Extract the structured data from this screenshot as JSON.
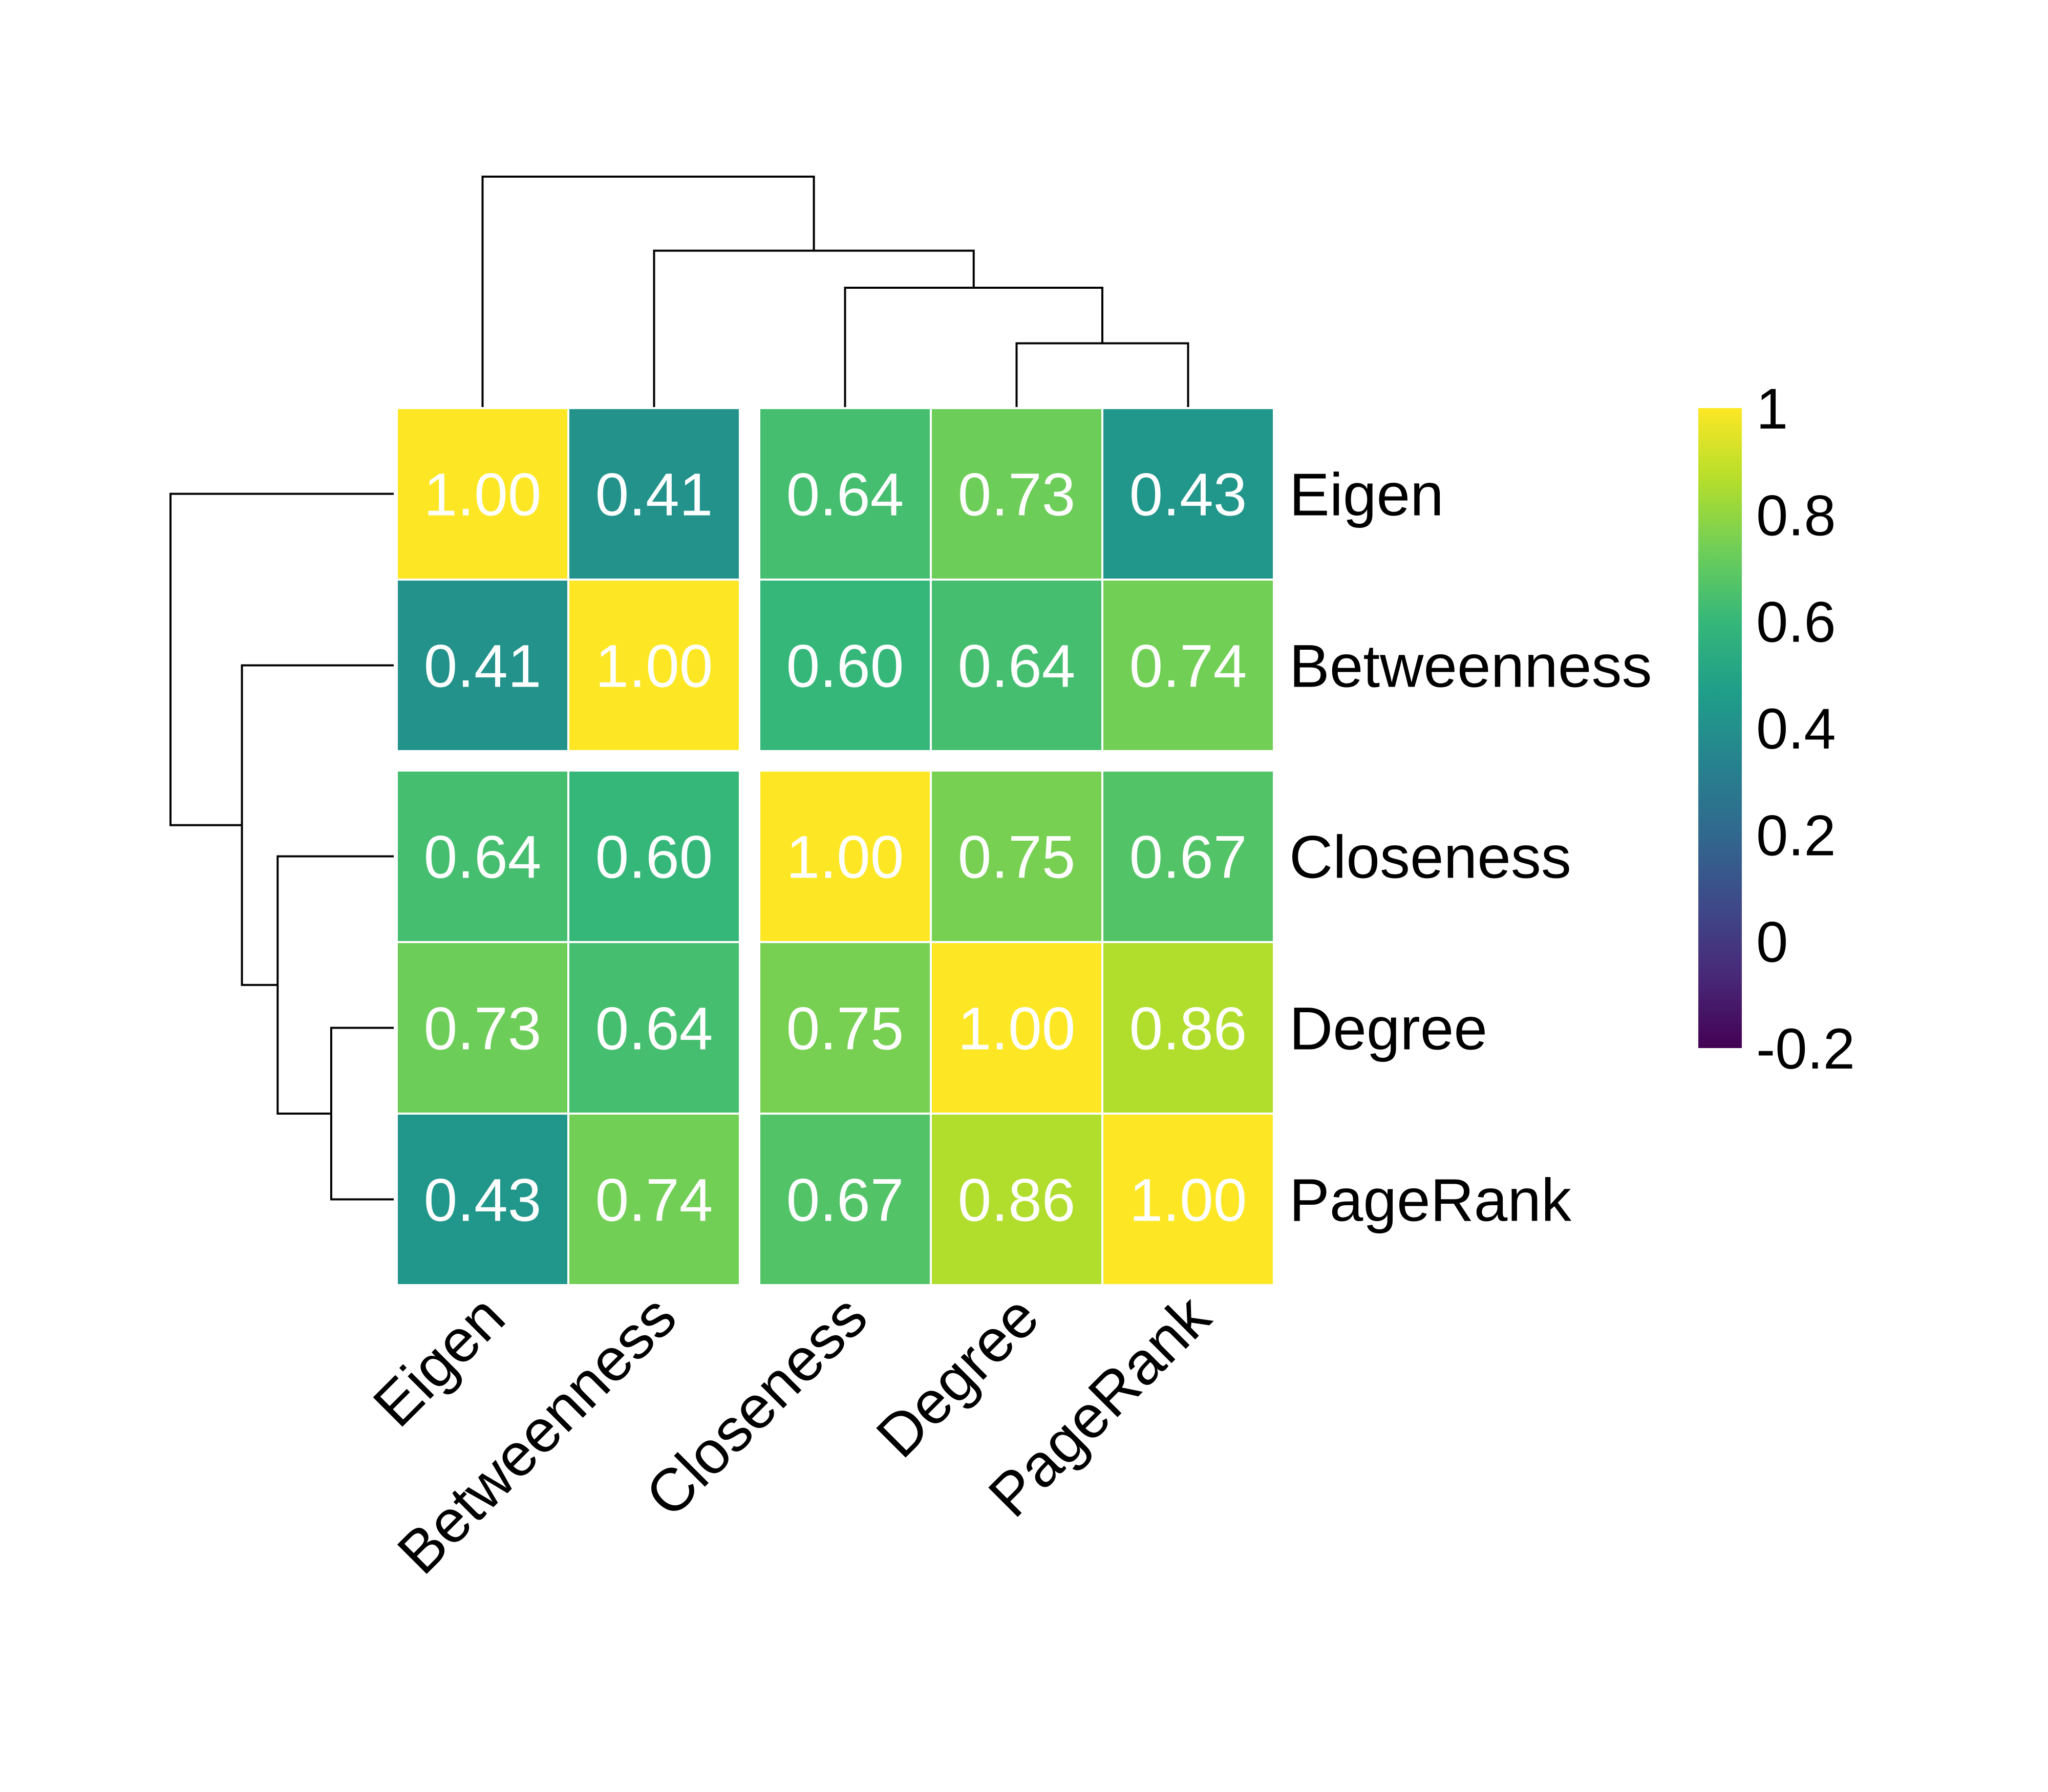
{
  "chart_data": {
    "type": "heatmap",
    "title": "",
    "subtitle": "",
    "row_labels": [
      "Eigen",
      "Betweenness",
      "Closeness",
      "Degree",
      "PageRank"
    ],
    "col_labels": [
      "Eigen",
      "Betweenness",
      "Closeness",
      "Degree",
      "PageRank"
    ],
    "values": [
      [
        1.0,
        0.41,
        0.64,
        0.73,
        0.43
      ],
      [
        0.41,
        1.0,
        0.6,
        0.64,
        0.74
      ],
      [
        0.64,
        0.6,
        1.0,
        0.75,
        0.67
      ],
      [
        0.73,
        0.64,
        0.75,
        1.0,
        0.86
      ],
      [
        0.43,
        0.74,
        0.67,
        0.86,
        1.0
      ]
    ],
    "cell_labels": [
      [
        "1.00",
        "0.41",
        "0.64",
        "0.73",
        "0.43"
      ],
      [
        "0.41",
        "1.00",
        "0.60",
        "0.64",
        "0.74"
      ],
      [
        "0.64",
        "0.60",
        "1.00",
        "0.75",
        "0.67"
      ],
      [
        "0.73",
        "0.64",
        "0.75",
        "1.00",
        "0.86"
      ],
      [
        "0.43",
        "0.74",
        "0.67",
        "0.86",
        "1.00"
      ]
    ],
    "color_scale": {
      "name": "viridis",
      "range": [
        -0.2,
        1
      ],
      "ticks": [
        -0.2,
        0,
        0.2,
        0.4,
        0.6,
        0.8,
        1
      ],
      "tick_labels": [
        "-0.2",
        "0",
        "0.2",
        "0.4",
        "0.6",
        "0.8",
        "1"
      ]
    },
    "dendrogram": {
      "leaf_order": [
        "Eigen",
        "Betweenness",
        "Closeness",
        "Degree",
        "PageRank"
      ],
      "merges": [
        [
          3,
          4,
          0.14
        ],
        [
          2,
          5,
          0.26
        ],
        [
          1,
          6,
          0.34
        ],
        [
          0,
          7,
          0.5
        ]
      ],
      "splits_after": [
        1
      ]
    },
    "legend_position": "right",
    "grid": false
  },
  "colors": {
    "viridis": [
      "#440154",
      "#482878",
      "#3e4989",
      "#31688e",
      "#26828e",
      "#1f9e89",
      "#35b779",
      "#6ece58",
      "#b5de2b",
      "#fde725"
    ],
    "cell_border": "#ffffff",
    "text_on_cell": "#ffffff",
    "line": "#000000"
  }
}
